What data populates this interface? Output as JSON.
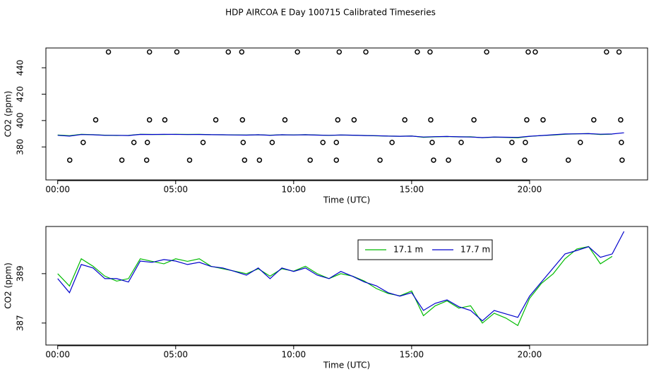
{
  "chart_data": [
    {
      "type": "line",
      "title": "HDP AIRCOA E  Day 100715  Calibrated Timeseries",
      "xlabel": "Time (UTC)",
      "ylabel": "CO2 (ppm)",
      "xlim": [
        -0.5,
        25
      ],
      "ylim": [
        355,
        455
      ],
      "xticks": [
        {
          "value": 0,
          "label": "00:00"
        },
        {
          "value": 5,
          "label": "05:00"
        },
        {
          "value": 10,
          "label": "10:00"
        },
        {
          "value": 15,
          "label": "15:00"
        },
        {
          "value": 20,
          "label": "20:00"
        }
      ],
      "yticks": [
        380,
        400,
        420,
        440
      ],
      "x": [
        0,
        0.5,
        1,
        1.5,
        2,
        2.5,
        3,
        3.5,
        4,
        4.5,
        5,
        5.5,
        6,
        6.5,
        7,
        7.5,
        8,
        8.5,
        9,
        9.5,
        10,
        10.5,
        11,
        11.5,
        12,
        12.5,
        13,
        13.5,
        14,
        14.5,
        15,
        15.5,
        16,
        16.5,
        17,
        17.5,
        18,
        18.5,
        19,
        19.5,
        20,
        20.5,
        21,
        21.5,
        22,
        22.5,
        23,
        23.5,
        24
      ],
      "series": [
        {
          "color": "#00bb00",
          "values": [
            389.0,
            388.5,
            389.6,
            389.3,
            388.9,
            388.7,
            388.8,
            389.6,
            389.5,
            389.4,
            389.6,
            389.5,
            389.6,
            389.3,
            389.2,
            389.1,
            389.0,
            389.2,
            388.9,
            389.2,
            389.1,
            389.3,
            389.0,
            388.8,
            389.0,
            388.9,
            388.7,
            388.4,
            388.2,
            388.1,
            388.3,
            387.3,
            387.7,
            387.9,
            387.6,
            387.7,
            387.0,
            387.4,
            387.2,
            386.9,
            388.0,
            388.6,
            389.0,
            389.6,
            390.0,
            390.1,
            389.4,
            389.7,
            null
          ]
        },
        {
          "color": "#0000cc",
          "values": [
            388.8,
            388.23,
            389.37,
            389.23,
            388.8,
            388.8,
            388.66,
            389.51,
            389.46,
            389.57,
            389.51,
            389.37,
            389.46,
            389.29,
            389.23,
            389.09,
            388.94,
            389.23,
            388.8,
            389.23,
            389.09,
            389.23,
            388.94,
            388.8,
            389.09,
            388.89,
            388.66,
            388.51,
            388.23,
            388.09,
            388.23,
            387.51,
            387.8,
            387.94,
            387.66,
            387.51,
            387.09,
            387.51,
            387.37,
            387.23,
            388.09,
            388.66,
            389.23,
            389.8,
            389.94,
            390.09,
            389.66,
            389.8,
            390.71
          ]
        }
      ],
      "points": {
        "color": "#000000",
        "x": [
          2.15,
          3.89,
          5.05,
          7.23,
          7.8,
          10.16,
          11.93,
          13.06,
          15.24,
          15.78,
          18.18,
          19.94,
          20.24,
          23.26,
          23.79,
          1.61,
          3.89,
          4.54,
          6.7,
          7.83,
          9.63,
          11.87,
          12.56,
          14.71,
          15.81,
          17.64,
          19.88,
          20.57,
          22.72,
          23.86,
          1.08,
          3.23,
          3.8,
          6.16,
          7.86,
          9.09,
          11.24,
          11.81,
          14.17,
          15.87,
          17.1,
          19.25,
          19.82,
          22.15,
          23.89,
          0.51,
          2.72,
          3.77,
          5.59,
          7.92,
          8.55,
          10.7,
          11.81,
          13.66,
          15.93,
          16.56,
          18.68,
          19.79,
          21.64,
          23.92
        ],
        "values": [
          452,
          452,
          452,
          452,
          452,
          452,
          452,
          452,
          452,
          452,
          452,
          452,
          452,
          452,
          452,
          400.5,
          400.5,
          400.5,
          400.5,
          400.5,
          400.5,
          400.5,
          400.5,
          400.5,
          400.5,
          400.5,
          400.5,
          400.5,
          400.5,
          400.5,
          383.4,
          383.4,
          383.4,
          383.4,
          383.4,
          383.4,
          383.4,
          383.4,
          383.4,
          383.4,
          383.4,
          383.4,
          383.4,
          383.4,
          383.4,
          370,
          370,
          370,
          370,
          370,
          370,
          370,
          370,
          370,
          370,
          370,
          370,
          370,
          370,
          370
        ]
      }
    },
    {
      "type": "line",
      "xlabel": "Time (UTC)",
      "ylabel": "CO2 (ppm)",
      "xlim": [
        -0.5,
        25
      ],
      "ylim": [
        386.11,
        390.91
      ],
      "xticks": [
        {
          "value": 0,
          "label": "00:00"
        },
        {
          "value": 5,
          "label": "05:00"
        },
        {
          "value": 10,
          "label": "10:00"
        },
        {
          "value": 15,
          "label": "15:00"
        },
        {
          "value": 20,
          "label": "20:00"
        }
      ],
      "yticks": [
        387,
        389
      ],
      "legend": "top",
      "x": [
        0,
        0.5,
        1,
        1.5,
        2,
        2.5,
        3,
        3.5,
        4,
        4.5,
        5,
        5.5,
        6,
        6.5,
        7,
        7.5,
        8,
        8.5,
        9,
        9.5,
        10,
        10.5,
        11,
        11.5,
        12,
        12.5,
        13,
        13.5,
        14,
        14.5,
        15,
        15.5,
        16,
        16.5,
        17,
        17.5,
        18,
        18.5,
        19,
        19.5,
        20,
        20.5,
        21,
        21.5,
        22,
        22.5,
        23,
        23.5,
        24
      ],
      "series": [
        {
          "name": "17.1 m",
          "color": "#00bb00",
          "values": [
            389.0,
            388.5,
            389.6,
            389.3,
            388.9,
            388.7,
            388.8,
            389.6,
            389.5,
            389.4,
            389.6,
            389.5,
            389.6,
            389.3,
            389.2,
            389.1,
            389.0,
            389.2,
            388.9,
            389.2,
            389.1,
            389.3,
            389.0,
            388.8,
            389.0,
            388.9,
            388.7,
            388.4,
            388.2,
            388.1,
            388.3,
            387.3,
            387.7,
            387.9,
            387.6,
            387.7,
            387.0,
            387.4,
            387.2,
            386.9,
            388.0,
            388.6,
            389.0,
            389.6,
            390.0,
            390.1,
            389.4,
            389.7,
            null
          ]
        },
        {
          "name": "17.7 m",
          "color": "#0000cc",
          "values": [
            388.8,
            388.23,
            389.37,
            389.23,
            388.8,
            388.8,
            388.66,
            389.51,
            389.46,
            389.57,
            389.51,
            389.37,
            389.46,
            389.29,
            389.23,
            389.09,
            388.94,
            389.23,
            388.8,
            389.23,
            389.09,
            389.23,
            388.94,
            388.8,
            389.09,
            388.89,
            388.66,
            388.51,
            388.23,
            388.09,
            388.23,
            387.51,
            387.8,
            387.94,
            387.66,
            387.51,
            387.09,
            387.51,
            387.37,
            387.23,
            388.09,
            388.66,
            389.23,
            389.8,
            389.94,
            390.09,
            389.66,
            389.8,
            390.71
          ]
        }
      ]
    }
  ]
}
